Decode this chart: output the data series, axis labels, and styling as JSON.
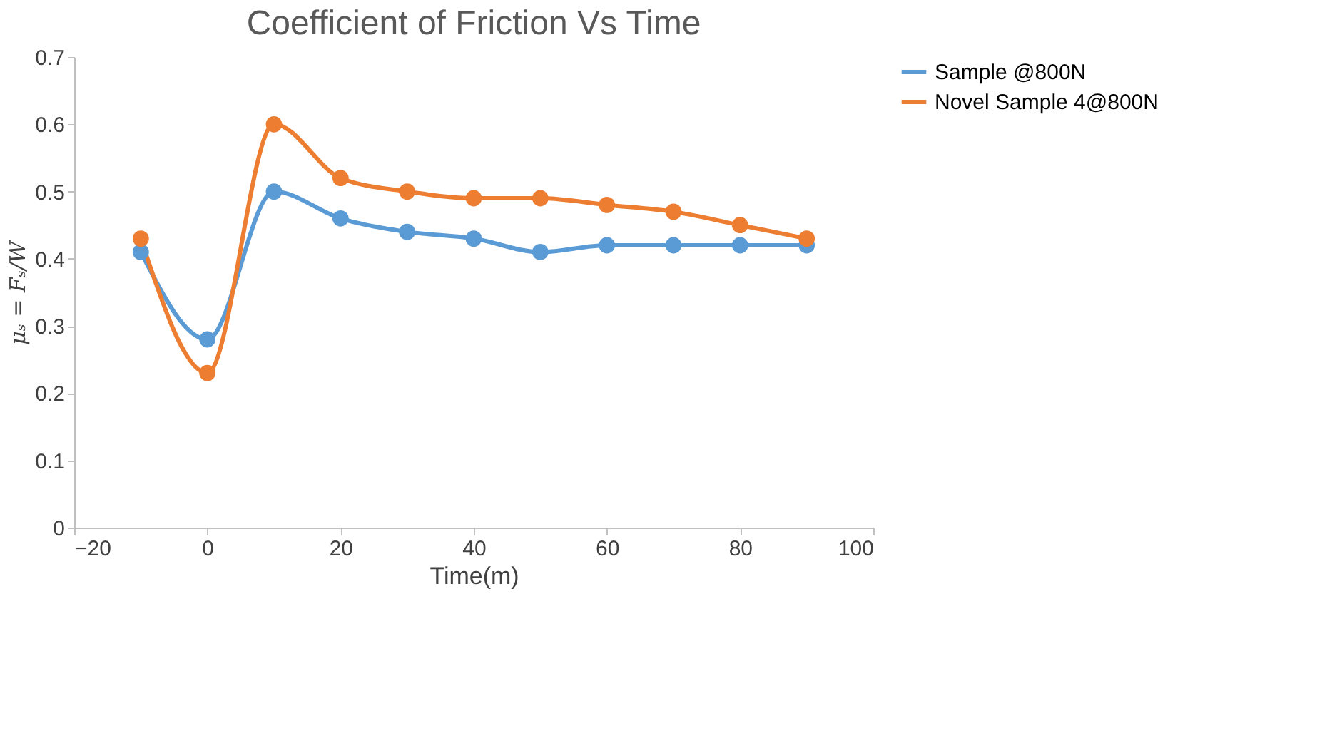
{
  "chart_data": {
    "type": "line",
    "title": "Coefficient of Friction Vs Time",
    "xlabel": "Time(m)",
    "ylabel": "μₛ = Fₛ/W",
    "x": [
      -10,
      0,
      10,
      20,
      30,
      40,
      50,
      60,
      70,
      80,
      90
    ],
    "series": [
      {
        "name": "Sample @800N",
        "color": "#5b9bd5",
        "values": [
          0.41,
          0.28,
          0.5,
          0.46,
          0.44,
          0.43,
          0.41,
          0.42,
          0.42,
          0.42,
          0.42
        ]
      },
      {
        "name": "Novel Sample 4@800N",
        "color": "#ed7d31",
        "values": [
          0.43,
          0.23,
          0.6,
          0.52,
          0.5,
          0.49,
          0.49,
          0.48,
          0.47,
          0.45,
          0.43
        ]
      }
    ],
    "xlim": [
      -20,
      100
    ],
    "xticks": [
      -20,
      0,
      20,
      40,
      60,
      80,
      100
    ],
    "ylim": [
      0,
      0.7
    ],
    "yticks": [
      0,
      0.1,
      0.2,
      0.3,
      0.4,
      0.5,
      0.6,
      0.7
    ],
    "grid": false,
    "legend": "right",
    "marker": "circle",
    "line_style": "solid"
  }
}
